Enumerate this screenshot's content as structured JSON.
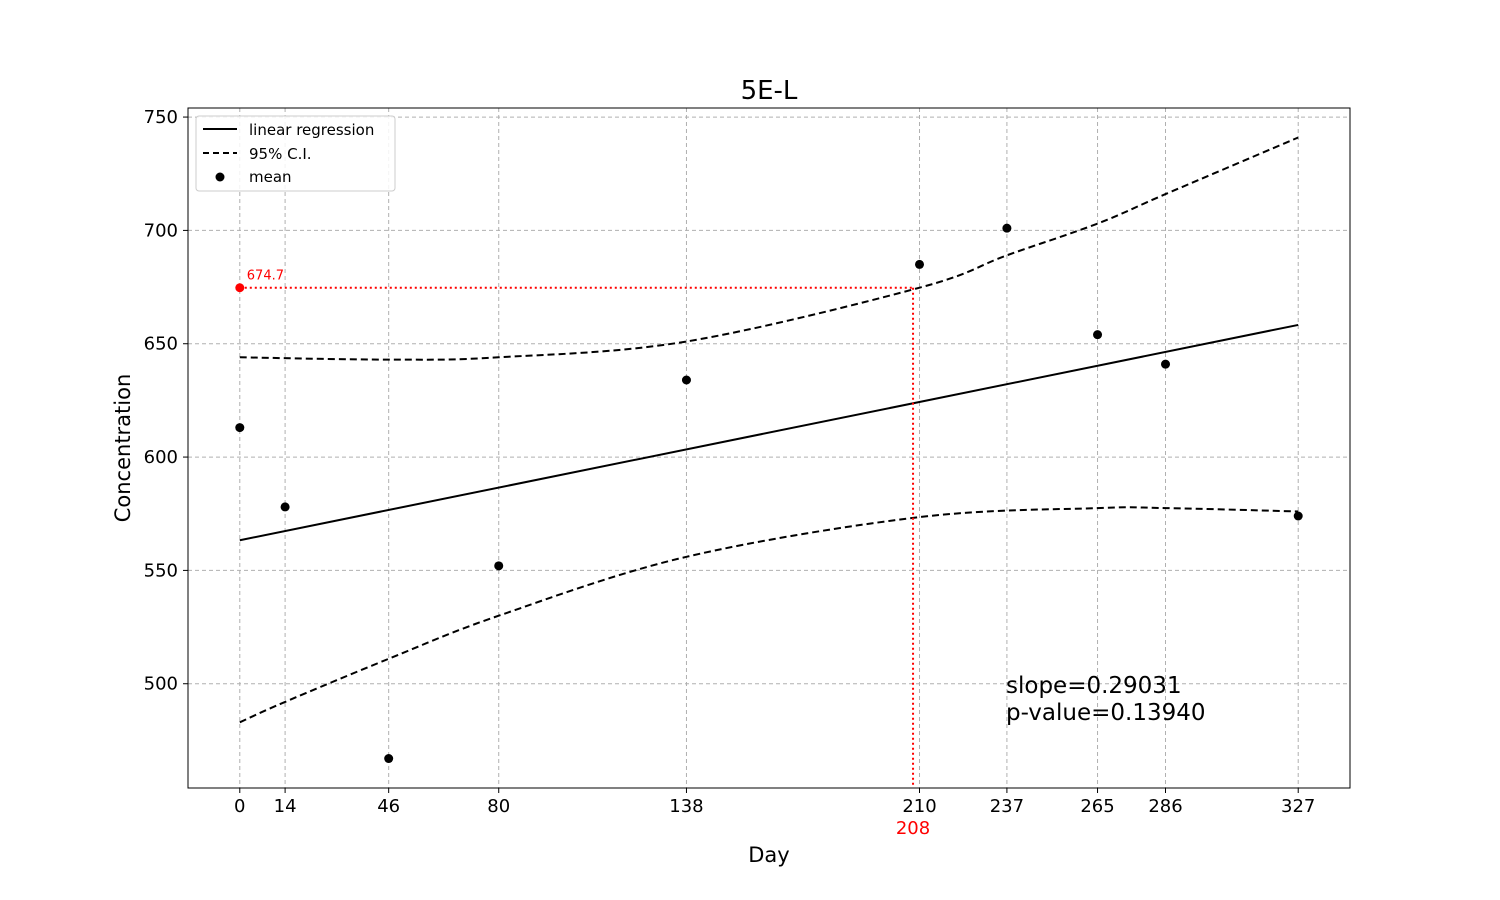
{
  "chart_data": {
    "type": "scatter",
    "title": "5E-L",
    "xlabel": "Day",
    "ylabel": "Concentration",
    "xlim": [
      -16,
      343
    ],
    "ylim": [
      454,
      754
    ],
    "x_ticks": [
      0,
      14,
      46,
      80,
      138,
      210,
      237,
      265,
      286,
      327
    ],
    "y_ticks": [
      500,
      550,
      600,
      650,
      700,
      750
    ],
    "grid": true,
    "legend_position": "top-left",
    "legend": [
      {
        "label": "linear regression",
        "style": "solid"
      },
      {
        "label": "95% C.I.",
        "style": "dashed"
      },
      {
        "label": "mean",
        "style": "marker"
      }
    ],
    "series": [
      {
        "name": "mean",
        "type": "scatter",
        "x": [
          0,
          14,
          46,
          80,
          138,
          210,
          237,
          265,
          286,
          327
        ],
        "y": [
          613,
          578,
          467,
          552,
          634,
          685,
          701,
          654,
          641,
          574
        ]
      },
      {
        "name": "linear regression",
        "type": "line",
        "x": [
          0,
          327
        ],
        "y": [
          563.3,
          658.3
        ]
      },
      {
        "name": "95% C.I.",
        "type": "line",
        "part": "upper",
        "x": [
          0,
          46,
          80,
          138,
          210,
          237,
          265,
          286,
          327
        ],
        "y": [
          644,
          643,
          644,
          651,
          674.7,
          689,
          703,
          716,
          741
        ]
      },
      {
        "name": "95% C.I.",
        "type": "line",
        "part": "lower",
        "x": [
          0,
          14,
          46,
          80,
          138,
          210,
          265,
          286,
          327
        ],
        "y": [
          483,
          492,
          511,
          530,
          556,
          573.5,
          577.5,
          577.5,
          576
        ]
      }
    ],
    "annotations": {
      "threshold_value": 674.7,
      "threshold_label": "674.7",
      "crossing_day": 208,
      "crossing_label": "208",
      "slope_text": "slope=0.29031",
      "pvalue_text": "p-value=0.13940"
    },
    "colors": {
      "data": "#000000",
      "highlight": "#ff0000",
      "grid": "#b0b0b0"
    }
  }
}
